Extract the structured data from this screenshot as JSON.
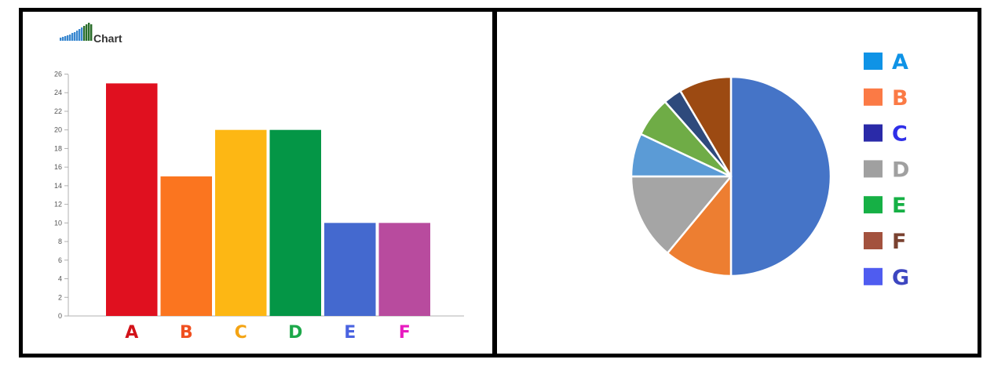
{
  "header": {
    "title": "Chart"
  },
  "colors": {
    "axis": "#b0b0b0",
    "tick_text": "#555555",
    "slice_border": "#ffffff"
  },
  "chart_data": [
    {
      "type": "bar",
      "categories": [
        "A",
        "B",
        "C",
        "D",
        "E",
        "F"
      ],
      "values": [
        25,
        15,
        20,
        20,
        10,
        10
      ],
      "bar_colors": [
        "#e0101f",
        "#fb751f",
        "#fdb714",
        "#049646",
        "#4469cf",
        "#b84b9e"
      ],
      "label_colors": [
        "#d21219",
        "#f05020",
        "#f4a414",
        "#1da84a",
        "#4a63e0",
        "#e81cc0"
      ],
      "yticks": [
        "0",
        "2",
        "4",
        "6",
        "8",
        "10",
        "12",
        "14",
        "16",
        "18",
        "20",
        "22",
        "24",
        "26"
      ],
      "ylim": [
        0,
        26
      ],
      "grid": false,
      "legend": "none"
    },
    {
      "type": "pie",
      "slices": [
        {
          "value": 50,
          "color": "#4574c7"
        },
        {
          "value": 11,
          "color": "#ed7e31"
        },
        {
          "value": 14,
          "color": "#a5a5a5"
        },
        {
          "value": 7,
          "color": "#5b9bd6"
        },
        {
          "value": 6.5,
          "color": "#6fac46"
        },
        {
          "value": 3,
          "color": "#2e4a7c"
        },
        {
          "value": 8.5,
          "color": "#9c4a12"
        }
      ],
      "legend_placement": "right",
      "legend": [
        {
          "label": "A",
          "swatch": "#0f93e6",
          "text_color": "#0f93e6"
        },
        {
          "label": "B",
          "swatch": "#fb7a45",
          "text_color": "#fb7a45"
        },
        {
          "label": "C",
          "swatch": "#2a2aa8",
          "text_color": "#2f2fe8"
        },
        {
          "label": "D",
          "swatch": "#a0a0a0",
          "text_color": "#a0a0a0"
        },
        {
          "label": "E",
          "swatch": "#16b045",
          "text_color": "#16b045"
        },
        {
          "label": "F",
          "swatch": "#a3523e",
          "text_color": "#7a4230"
        },
        {
          "label": "G",
          "swatch": "#4f5cf0",
          "text_color": "#3d46c0"
        }
      ]
    }
  ]
}
